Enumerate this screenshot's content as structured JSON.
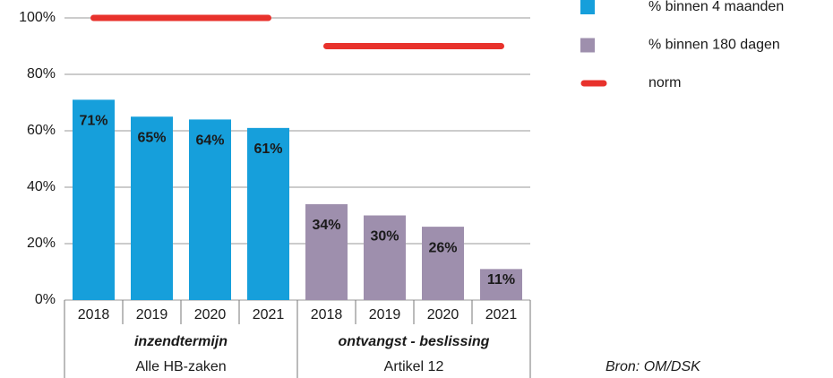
{
  "chart_data": {
    "type": "bar",
    "categories": [
      "2018",
      "2019",
      "2020",
      "2021",
      "2018",
      "2019",
      "2020",
      "2021"
    ],
    "groups": [
      {
        "label": "inzendtermijn",
        "sublabel": "Alle HB-zaken"
      },
      {
        "label": "ontvangst - beslissing",
        "sublabel": "Artikel 12"
      }
    ],
    "series": [
      {
        "name": "% binnen 4 maanden",
        "color": "#169fdb",
        "values": [
          71,
          65,
          64,
          61,
          null,
          null,
          null,
          null
        ],
        "value_labels": [
          "71%",
          "65%",
          "64%",
          "61%",
          null,
          null,
          null,
          null
        ]
      },
      {
        "name": "% binnen 180 dagen",
        "color": "#9e8fad",
        "values": [
          null,
          null,
          null,
          null,
          34,
          30,
          26,
          11
        ],
        "value_labels": [
          null,
          null,
          null,
          null,
          "34%",
          "30%",
          "26%",
          "11%"
        ]
      },
      {
        "name": "norm",
        "color": "#e8322c",
        "values": [
          100,
          100,
          100,
          100,
          90,
          90,
          90,
          90
        ],
        "line": true
      }
    ],
    "ylim": [
      0,
      100
    ],
    "yticks": [
      {
        "value": 0,
        "label": "0%"
      },
      {
        "value": 20,
        "label": "20%"
      },
      {
        "value": 40,
        "label": "40%"
      },
      {
        "value": 60,
        "label": "60%"
      },
      {
        "value": 80,
        "label": "80%"
      },
      {
        "value": 100,
        "label": "100%"
      }
    ],
    "grid": true,
    "legend": "right",
    "source": "Bron: OM/DSK"
  }
}
